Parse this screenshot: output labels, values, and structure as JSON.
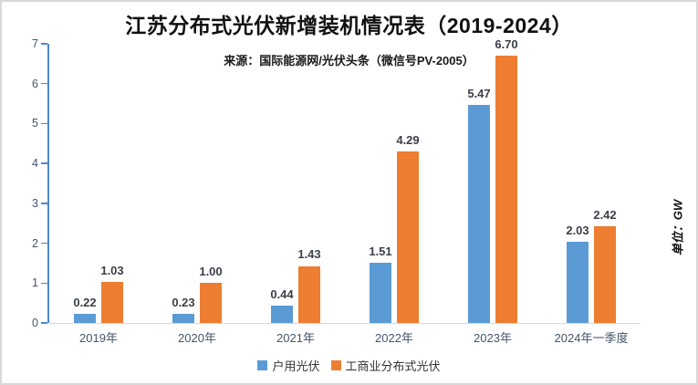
{
  "title": "江苏分布式光伏新增装机情况表（2019-2024）",
  "subtitle": "来源：国际能源网/光伏头条（微信号PV-2005）",
  "unit_label": "单位：GW",
  "colors": {
    "series_household": "#5B9BD5",
    "series_commercial": "#ED7D31",
    "y_axis_line": "#4E87C6",
    "x_axis_line": "#D9D9D9",
    "tick_text": "#44546A",
    "value_text": "#3C4049"
  },
  "chart_data": {
    "type": "bar",
    "title": "江苏分布式光伏新增装机情况表（2019-2024）",
    "subtitle": "来源：国际能源网/光伏头条（微信号PV-2005）",
    "unit": "单位：GW",
    "categories": [
      "2019年",
      "2020年",
      "2021年",
      "2022年",
      "2023年",
      "2024年一季度"
    ],
    "series": [
      {
        "name": "户用光伏",
        "color": "#5B9BD5",
        "values": [
          0.22,
          0.23,
          0.44,
          1.51,
          5.47,
          2.03
        ]
      },
      {
        "name": "工商业分布式光伏",
        "color": "#ED7D31",
        "values": [
          1.03,
          1.0,
          1.43,
          4.29,
          6.7,
          2.42
        ]
      }
    ],
    "value_label_decimals": 2,
    "ylim": [
      0,
      7
    ],
    "ytick_step": 1,
    "grid": false,
    "legend_position": "bottom"
  }
}
